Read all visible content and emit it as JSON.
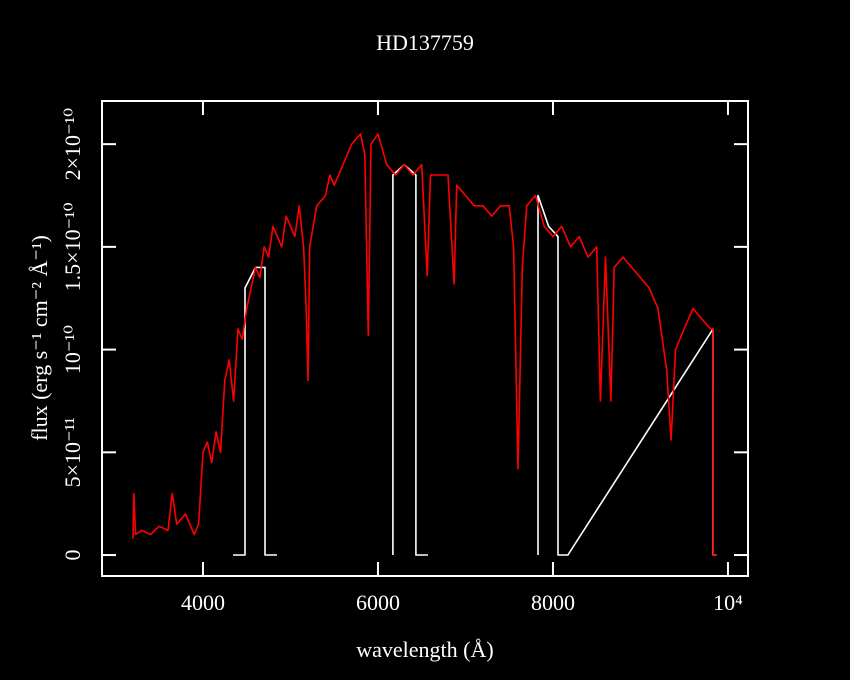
{
  "chart_data": {
    "type": "line",
    "title": "HD137759",
    "x_label": "wavelength (Å)",
    "y_label": "flux (erg s⁻¹ cm⁻² Å⁻¹)",
    "xlim": [
      2846,
      10229
    ],
    "ylim": [
      -1.02e-11,
      2.21e-10
    ],
    "xticks": [
      4000,
      6000,
      8000,
      {
        "value": 10000,
        "label": "10⁴"
      }
    ],
    "yticks": [
      0,
      {
        "value": 5e-11,
        "label": "5×10⁻¹¹"
      },
      {
        "value": 1e-10,
        "label": "10⁻¹⁰"
      },
      {
        "value": 1.5e-10,
        "label": "1.5×10⁻¹⁰"
      },
      {
        "value": 2e-10,
        "label": "2×10⁻¹⁰"
      }
    ],
    "series": [
      {
        "color": "#ffffff",
        "x": [
          4343,
          4480,
          4480,
          4600,
          4709,
          4709,
          4846,
          6050,
          6171,
          6171,
          6300,
          6434,
          6434,
          6571,
          7700,
          7829,
          7829,
          7950,
          8057,
          8057,
          8171,
          9829,
          9829,
          9870
        ],
        "values": [
          0,
          0,
          1.3e-10,
          1.4e-10,
          1.4e-10,
          0,
          0,
          null,
          0,
          1.85e-10,
          1.9e-10,
          1.85e-10,
          0,
          0,
          null,
          0,
          1.75e-10,
          1.6e-10,
          1.55e-10,
          0,
          0,
          1.1e-10,
          0,
          0
        ]
      },
      {
        "color": "#ff0000",
        "x": [
          3200,
          3210,
          3230,
          3300,
          3400,
          3500,
          3600,
          3650,
          3700,
          3800,
          3900,
          3950,
          4000,
          4050,
          4100,
          4150,
          4200,
          4250,
          4300,
          4350,
          4400,
          4450,
          4500,
          4550,
          4600,
          4650,
          4700,
          4750,
          4800,
          4850,
          4900,
          4950,
          5000,
          5050,
          5100,
          5150,
          5180,
          5200,
          5220,
          5300,
          5400,
          5450,
          5500,
          5600,
          5700,
          5800,
          5850,
          5890,
          5920,
          6000,
          6100,
          6200,
          6300,
          6400,
          6500,
          6563,
          6600,
          6700,
          6800,
          6870,
          6900,
          7000,
          7100,
          7200,
          7300,
          7400,
          7500,
          7550,
          7600,
          7650,
          7700,
          7800,
          7900,
          8000,
          8100,
          8200,
          8300,
          8400,
          8500,
          8542,
          8600,
          8662,
          8700,
          8800,
          8900,
          9000,
          9100,
          9200,
          9300,
          9350,
          9400,
          9500,
          9600,
          9700,
          9800,
          9829,
          9830,
          9870
        ],
        "values": [
          8e-12,
          3e-11,
          1e-11,
          1.2e-11,
          1e-11,
          1.4e-11,
          1.2e-11,
          3e-11,
          1.5e-11,
          2e-11,
          1e-11,
          1.5e-11,
          5e-11,
          5.5e-11,
          4.5e-11,
          6e-11,
          5e-11,
          8.5e-11,
          9.5e-11,
          7.5e-11,
          1.1e-10,
          1.05e-10,
          1.2e-10,
          1.3e-10,
          1.4e-10,
          1.35e-10,
          1.5e-10,
          1.45e-10,
          1.6e-10,
          1.55e-10,
          1.5e-10,
          1.65e-10,
          1.6e-10,
          1.55e-10,
          1.7e-10,
          1.5e-10,
          1.2e-10,
          8.5e-11,
          1.5e-10,
          1.7e-10,
          1.75e-10,
          1.85e-10,
          1.8e-10,
          1.9e-10,
          2e-10,
          2.05e-10,
          1.95e-10,
          1.07e-10,
          2e-10,
          2.05e-10,
          1.9e-10,
          1.85e-10,
          1.9e-10,
          1.85e-10,
          1.9e-10,
          1.36e-10,
          1.85e-10,
          1.85e-10,
          1.85e-10,
          1.32e-10,
          1.8e-10,
          1.75e-10,
          1.7e-10,
          1.7e-10,
          1.65e-10,
          1.7e-10,
          1.7e-10,
          1.5e-10,
          4.2e-11,
          1.4e-10,
          1.7e-10,
          1.75e-10,
          1.6e-10,
          1.55e-10,
          1.6e-10,
          1.5e-10,
          1.55e-10,
          1.45e-10,
          1.5e-10,
          7.5e-11,
          1.45e-10,
          7.5e-11,
          1.4e-10,
          1.45e-10,
          1.4e-10,
          1.35e-10,
          1.3e-10,
          1.2e-10,
          9e-11,
          5.6e-11,
          1e-10,
          1.1e-10,
          1.2e-10,
          1.15e-10,
          1.1e-10,
          1.1e-10,
          0,
          0
        ]
      }
    ]
  }
}
